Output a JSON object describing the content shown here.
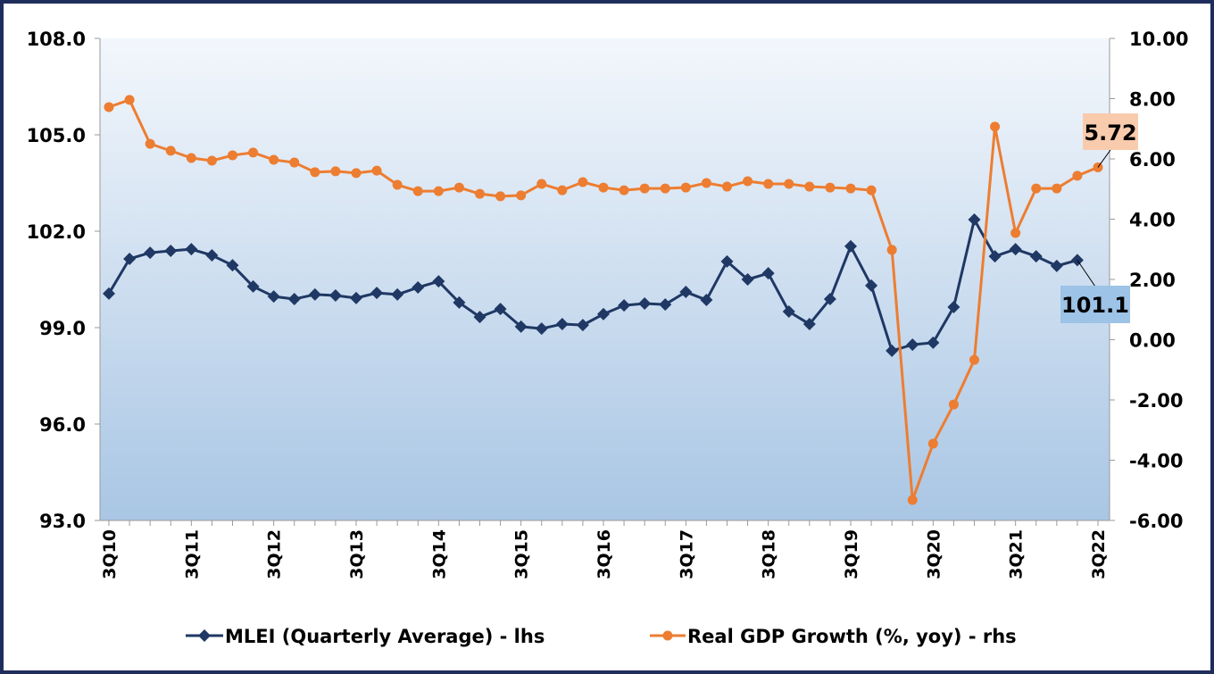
{
  "chart_data": {
    "type": "line",
    "title": "",
    "x": [
      "3Q10",
      "4Q10",
      "1Q11",
      "2Q11",
      "3Q11",
      "4Q11",
      "1Q12",
      "2Q12",
      "3Q12",
      "4Q12",
      "1Q13",
      "2Q13",
      "3Q13",
      "4Q13",
      "1Q14",
      "2Q14",
      "3Q14",
      "4Q14",
      "1Q15",
      "2Q15",
      "3Q15",
      "4Q15",
      "1Q16",
      "2Q16",
      "3Q16",
      "4Q16",
      "1Q17",
      "2Q17",
      "3Q17",
      "4Q17",
      "1Q18",
      "2Q18",
      "3Q18",
      "4Q18",
      "1Q19",
      "2Q19",
      "3Q19",
      "4Q19",
      "1Q20",
      "2Q20",
      "3Q20",
      "4Q20",
      "1Q21",
      "2Q21",
      "3Q21",
      "4Q21",
      "1Q22",
      "2Q22",
      "3Q22"
    ],
    "x_tick_labels": [
      "3Q10",
      "3Q11",
      "3Q12",
      "3Q13",
      "3Q14",
      "3Q15",
      "3Q16",
      "3Q17",
      "3Q18",
      "3Q19",
      "3Q20",
      "3Q21",
      "3Q22"
    ],
    "y_left": {
      "range": [
        93.0,
        108.0
      ],
      "ticks": [
        "93.0",
        "96.0",
        "99.0",
        "102.0",
        "105.0",
        "108.0"
      ]
    },
    "y_right": {
      "range": [
        -6,
        10
      ],
      "ticks": [
        "-6.00",
        "-4.00",
        "-2.00",
        "0.00",
        "2.00",
        "4.00",
        "6.00",
        "8.00",
        "10.00"
      ]
    },
    "grid": false,
    "legend_position": "bottom",
    "series": [
      {
        "name": "MLEI (Quarterly Average) - lhs",
        "axis": "left",
        "color": "#1f3864",
        "marker": "diamond",
        "values": [
          100.06,
          101.14,
          101.33,
          101.39,
          101.44,
          101.25,
          100.94,
          100.28,
          99.97,
          99.89,
          100.03,
          100.0,
          99.92,
          100.08,
          100.03,
          100.25,
          100.44,
          99.78,
          99.33,
          99.58,
          99.03,
          98.97,
          99.11,
          99.08,
          99.42,
          99.69,
          99.75,
          99.72,
          100.11,
          99.86,
          101.06,
          100.5,
          100.69,
          99.5,
          99.11,
          99.89,
          101.53,
          100.31,
          98.28,
          98.47,
          98.53,
          99.64,
          102.36,
          101.22,
          101.44,
          101.22,
          100.92,
          101.1,
          null
        ],
        "last_label": "101.1",
        "label_color": "#9dc3e6"
      },
      {
        "name": "Real GDP Growth (%, yoy) - rhs",
        "axis": "right",
        "color": "#ed7d31",
        "marker": "circle",
        "values": [
          7.72,
          7.96,
          6.5,
          6.27,
          6.03,
          5.94,
          6.12,
          6.21,
          5.97,
          5.88,
          5.56,
          5.59,
          5.53,
          5.61,
          5.14,
          4.93,
          4.93,
          5.05,
          4.84,
          4.76,
          4.79,
          5.17,
          4.96,
          5.23,
          5.05,
          4.96,
          5.02,
          5.02,
          5.05,
          5.2,
          5.08,
          5.26,
          5.17,
          5.17,
          5.08,
          5.05,
          5.02,
          4.96,
          2.98,
          -5.32,
          -3.45,
          -2.15,
          -0.67,
          7.07,
          3.54,
          5.02,
          5.02,
          5.44,
          5.72
        ],
        "last_label": "5.72",
        "label_color": "#f8cbad"
      }
    ]
  }
}
